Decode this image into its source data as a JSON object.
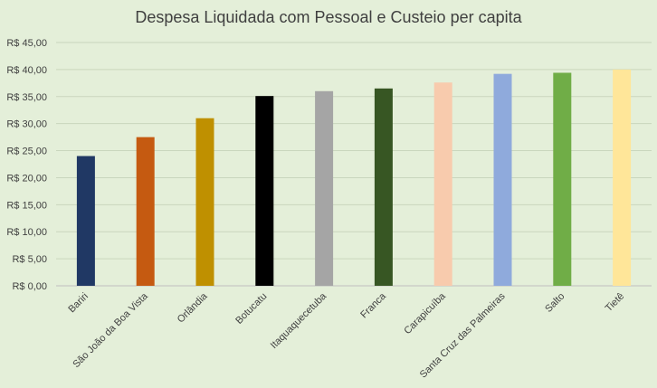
{
  "chart_data": {
    "type": "bar",
    "title": "Despesa Liquidada com Pessoal e Custeio per capita",
    "xlabel": "",
    "ylabel": "",
    "categories": [
      "Bariri",
      "São João da Boa Vista",
      "Orlândia",
      "Botucatu",
      "Itaquaquecetuba",
      "Franca",
      "Carapicuíba",
      "Santa Cruz das Palmeiras",
      "Salto",
      "Tietê"
    ],
    "values": [
      24.0,
      27.5,
      31.0,
      35.1,
      36.0,
      36.5,
      37.6,
      39.2,
      39.4,
      40.0
    ],
    "colors": [
      "#203864",
      "#c55a11",
      "#bf9000",
      "#000000",
      "#a5a5a5",
      "#375623",
      "#f8cbad",
      "#8faadc",
      "#70ad47",
      "#ffe699"
    ],
    "ylim": [
      0,
      45
    ],
    "yticks": [
      0,
      5,
      10,
      15,
      20,
      25,
      30,
      35,
      40,
      45
    ],
    "ytick_labels": [
      "R$ 0,00",
      "R$ 5,00",
      "R$ 10,00",
      "R$ 15,00",
      "R$ 20,00",
      "R$ 25,00",
      "R$ 30,00",
      "R$ 35,00",
      "R$ 40,00",
      "R$ 45,00"
    ],
    "grid": true,
    "legend": "none",
    "background": "#e4efd9"
  }
}
